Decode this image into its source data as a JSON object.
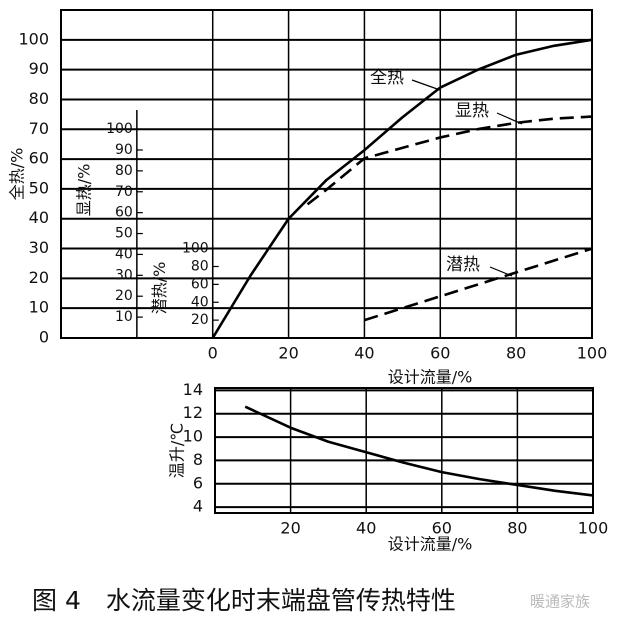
{
  "chart_data": [
    {
      "type": "line",
      "xlabel": "设计流量/%",
      "xlim": [
        -40,
        100
      ],
      "xticks": [
        0,
        20,
        40,
        60,
        80,
        100
      ],
      "ylabel": "全热/%",
      "ylim": [
        0,
        110
      ],
      "yticks": [
        0,
        10,
        20,
        30,
        40,
        50,
        60,
        70,
        80,
        90,
        100
      ],
      "y2label": "显热/%",
      "y2lim": [
        0,
        157
      ],
      "y2ticks": [
        10,
        20,
        30,
        40,
        50,
        60,
        70,
        80,
        90,
        100
      ],
      "y3label": "潜热/%",
      "y3lim": [
        0,
        367
      ],
      "y3ticks": [
        20,
        40,
        60,
        80,
        100
      ],
      "grid": true,
      "series": [
        {
          "name": "全热",
          "color": "#000000",
          "dash": false,
          "axis": "y",
          "x": [
            0,
            10,
            20,
            30,
            40,
            50,
            60,
            70,
            80,
            90,
            100
          ],
          "values": [
            0,
            21,
            40,
            53,
            63,
            74,
            84,
            90,
            95,
            98,
            100
          ]
        },
        {
          "name": "显热",
          "color": "#000000",
          "dash": true,
          "axis": "y2",
          "x": [
            25,
            30,
            40,
            50,
            60,
            70,
            80,
            90,
            100
          ],
          "values": [
            64,
            71,
            86,
            91,
            96,
            100,
            103,
            105,
            106
          ]
        },
        {
          "name": "潜热",
          "color": "#000000",
          "dash": true,
          "axis": "y3",
          "x": [
            40,
            100
          ],
          "values": [
            20,
            100
          ]
        }
      ]
    },
    {
      "type": "line",
      "xlabel": "设计流量/%",
      "xlim": [
        0,
        100
      ],
      "xticks": [
        20,
        40,
        60,
        80,
        100
      ],
      "ylabel": "温升/℃",
      "ylim": [
        3.5,
        14.2
      ],
      "yticks": [
        4,
        6,
        8,
        10,
        12,
        14
      ],
      "grid": true,
      "series": [
        {
          "name": null,
          "color": "#000000",
          "dash": false,
          "axis": "y",
          "x": [
            8,
            20,
            30,
            40,
            50,
            60,
            70,
            80,
            90,
            100
          ],
          "values": [
            12.6,
            10.8,
            9.6,
            8.7,
            7.8,
            7.0,
            6.4,
            5.9,
            5.4,
            5.0
          ]
        }
      ]
    }
  ],
  "caption": "图 4　水流量变化时末端盘管传热特性",
  "watermark": "暖通家族"
}
